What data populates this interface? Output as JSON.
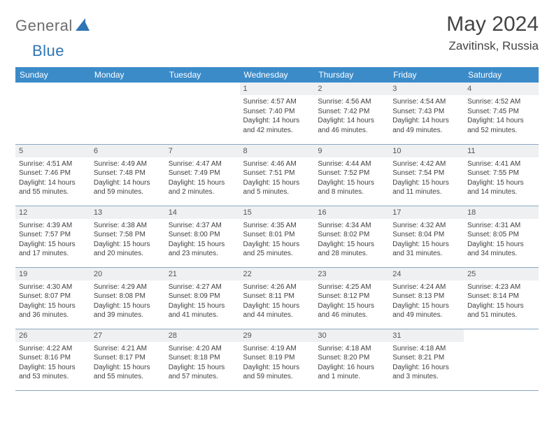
{
  "logo": {
    "text1": "General",
    "text2": "Blue"
  },
  "title": "May 2024",
  "location": "Zavitinsk, Russia",
  "day_headers": [
    "Sunday",
    "Monday",
    "Tuesday",
    "Wednesday",
    "Thursday",
    "Friday",
    "Saturday"
  ],
  "colors": {
    "header_bg": "#3b8bc9",
    "header_fg": "#ffffff",
    "daynum_bg": "#eef0f2",
    "border": "#8ba8c0",
    "logo_gray": "#6d6d6d",
    "logo_blue": "#2e75b6"
  },
  "weeks": [
    [
      {
        "n": "",
        "sunrise": "",
        "sunset": "",
        "daylight": "",
        "empty": true
      },
      {
        "n": "",
        "sunrise": "",
        "sunset": "",
        "daylight": "",
        "empty": true
      },
      {
        "n": "",
        "sunrise": "",
        "sunset": "",
        "daylight": "",
        "empty": true
      },
      {
        "n": "1",
        "sunrise": "Sunrise: 4:57 AM",
        "sunset": "Sunset: 7:40 PM",
        "daylight": "Daylight: 14 hours and 42 minutes."
      },
      {
        "n": "2",
        "sunrise": "Sunrise: 4:56 AM",
        "sunset": "Sunset: 7:42 PM",
        "daylight": "Daylight: 14 hours and 46 minutes."
      },
      {
        "n": "3",
        "sunrise": "Sunrise: 4:54 AM",
        "sunset": "Sunset: 7:43 PM",
        "daylight": "Daylight: 14 hours and 49 minutes."
      },
      {
        "n": "4",
        "sunrise": "Sunrise: 4:52 AM",
        "sunset": "Sunset: 7:45 PM",
        "daylight": "Daylight: 14 hours and 52 minutes."
      }
    ],
    [
      {
        "n": "5",
        "sunrise": "Sunrise: 4:51 AM",
        "sunset": "Sunset: 7:46 PM",
        "daylight": "Daylight: 14 hours and 55 minutes."
      },
      {
        "n": "6",
        "sunrise": "Sunrise: 4:49 AM",
        "sunset": "Sunset: 7:48 PM",
        "daylight": "Daylight: 14 hours and 59 minutes."
      },
      {
        "n": "7",
        "sunrise": "Sunrise: 4:47 AM",
        "sunset": "Sunset: 7:49 PM",
        "daylight": "Daylight: 15 hours and 2 minutes."
      },
      {
        "n": "8",
        "sunrise": "Sunrise: 4:46 AM",
        "sunset": "Sunset: 7:51 PM",
        "daylight": "Daylight: 15 hours and 5 minutes."
      },
      {
        "n": "9",
        "sunrise": "Sunrise: 4:44 AM",
        "sunset": "Sunset: 7:52 PM",
        "daylight": "Daylight: 15 hours and 8 minutes."
      },
      {
        "n": "10",
        "sunrise": "Sunrise: 4:42 AM",
        "sunset": "Sunset: 7:54 PM",
        "daylight": "Daylight: 15 hours and 11 minutes."
      },
      {
        "n": "11",
        "sunrise": "Sunrise: 4:41 AM",
        "sunset": "Sunset: 7:55 PM",
        "daylight": "Daylight: 15 hours and 14 minutes."
      }
    ],
    [
      {
        "n": "12",
        "sunrise": "Sunrise: 4:39 AM",
        "sunset": "Sunset: 7:57 PM",
        "daylight": "Daylight: 15 hours and 17 minutes."
      },
      {
        "n": "13",
        "sunrise": "Sunrise: 4:38 AM",
        "sunset": "Sunset: 7:58 PM",
        "daylight": "Daylight: 15 hours and 20 minutes."
      },
      {
        "n": "14",
        "sunrise": "Sunrise: 4:37 AM",
        "sunset": "Sunset: 8:00 PM",
        "daylight": "Daylight: 15 hours and 23 minutes."
      },
      {
        "n": "15",
        "sunrise": "Sunrise: 4:35 AM",
        "sunset": "Sunset: 8:01 PM",
        "daylight": "Daylight: 15 hours and 25 minutes."
      },
      {
        "n": "16",
        "sunrise": "Sunrise: 4:34 AM",
        "sunset": "Sunset: 8:02 PM",
        "daylight": "Daylight: 15 hours and 28 minutes."
      },
      {
        "n": "17",
        "sunrise": "Sunrise: 4:32 AM",
        "sunset": "Sunset: 8:04 PM",
        "daylight": "Daylight: 15 hours and 31 minutes."
      },
      {
        "n": "18",
        "sunrise": "Sunrise: 4:31 AM",
        "sunset": "Sunset: 8:05 PM",
        "daylight": "Daylight: 15 hours and 34 minutes."
      }
    ],
    [
      {
        "n": "19",
        "sunrise": "Sunrise: 4:30 AM",
        "sunset": "Sunset: 8:07 PM",
        "daylight": "Daylight: 15 hours and 36 minutes."
      },
      {
        "n": "20",
        "sunrise": "Sunrise: 4:29 AM",
        "sunset": "Sunset: 8:08 PM",
        "daylight": "Daylight: 15 hours and 39 minutes."
      },
      {
        "n": "21",
        "sunrise": "Sunrise: 4:27 AM",
        "sunset": "Sunset: 8:09 PM",
        "daylight": "Daylight: 15 hours and 41 minutes."
      },
      {
        "n": "22",
        "sunrise": "Sunrise: 4:26 AM",
        "sunset": "Sunset: 8:11 PM",
        "daylight": "Daylight: 15 hours and 44 minutes."
      },
      {
        "n": "23",
        "sunrise": "Sunrise: 4:25 AM",
        "sunset": "Sunset: 8:12 PM",
        "daylight": "Daylight: 15 hours and 46 minutes."
      },
      {
        "n": "24",
        "sunrise": "Sunrise: 4:24 AM",
        "sunset": "Sunset: 8:13 PM",
        "daylight": "Daylight: 15 hours and 49 minutes."
      },
      {
        "n": "25",
        "sunrise": "Sunrise: 4:23 AM",
        "sunset": "Sunset: 8:14 PM",
        "daylight": "Daylight: 15 hours and 51 minutes."
      }
    ],
    [
      {
        "n": "26",
        "sunrise": "Sunrise: 4:22 AM",
        "sunset": "Sunset: 8:16 PM",
        "daylight": "Daylight: 15 hours and 53 minutes."
      },
      {
        "n": "27",
        "sunrise": "Sunrise: 4:21 AM",
        "sunset": "Sunset: 8:17 PM",
        "daylight": "Daylight: 15 hours and 55 minutes."
      },
      {
        "n": "28",
        "sunrise": "Sunrise: 4:20 AM",
        "sunset": "Sunset: 8:18 PM",
        "daylight": "Daylight: 15 hours and 57 minutes."
      },
      {
        "n": "29",
        "sunrise": "Sunrise: 4:19 AM",
        "sunset": "Sunset: 8:19 PM",
        "daylight": "Daylight: 15 hours and 59 minutes."
      },
      {
        "n": "30",
        "sunrise": "Sunrise: 4:18 AM",
        "sunset": "Sunset: 8:20 PM",
        "daylight": "Daylight: 16 hours and 1 minute."
      },
      {
        "n": "31",
        "sunrise": "Sunrise: 4:18 AM",
        "sunset": "Sunset: 8:21 PM",
        "daylight": "Daylight: 16 hours and 3 minutes."
      },
      {
        "n": "",
        "sunrise": "",
        "sunset": "",
        "daylight": "",
        "empty": true
      }
    ]
  ]
}
